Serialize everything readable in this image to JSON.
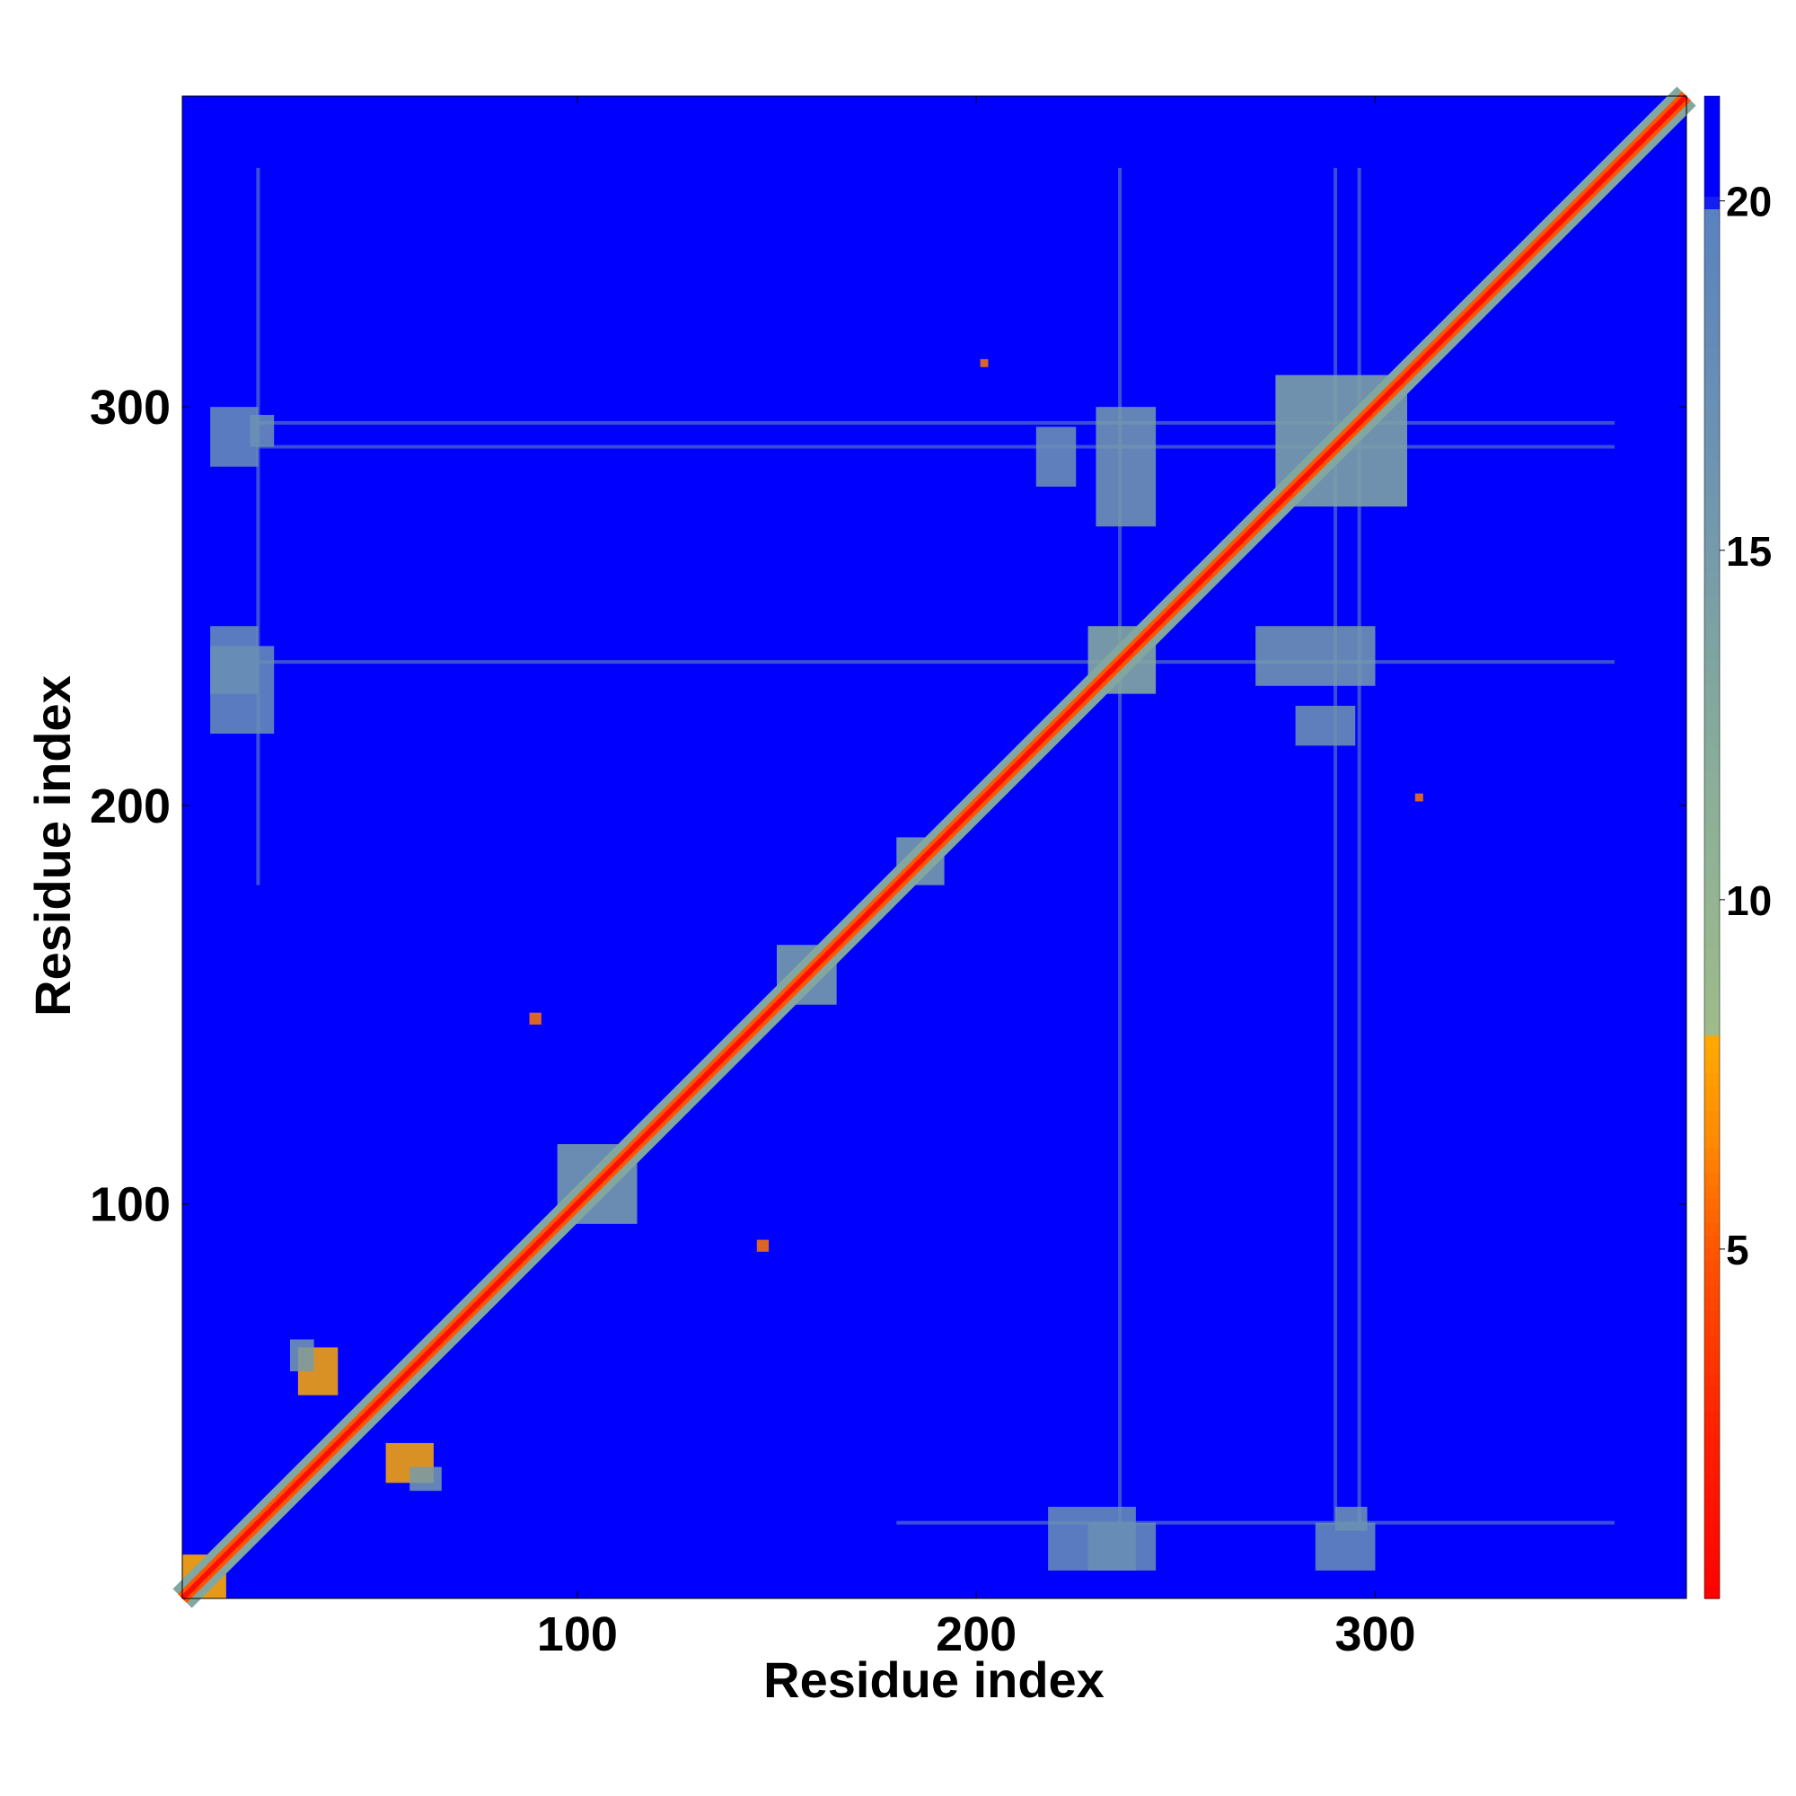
{
  "chart_data": {
    "type": "heatmap",
    "title": "",
    "xlabel": "Residue index",
    "ylabel": "Residue index",
    "xlim": [
      1,
      378
    ],
    "ylim": [
      1,
      378
    ],
    "x_ticks": [
      100,
      200,
      300
    ],
    "y_ticks": [
      100,
      200,
      300
    ],
    "colorbar": {
      "min": 0,
      "max": 21.5,
      "ticks": [
        5,
        10,
        15,
        20
      ],
      "stops": [
        {
          "value": 0,
          "color": "#ff0000"
        },
        {
          "value": 2.5,
          "color": "#ff2200"
        },
        {
          "value": 5,
          "color": "#ff5500"
        },
        {
          "value": 6.5,
          "color": "#ff8800"
        },
        {
          "value": 8,
          "color": "#ffaa00"
        },
        {
          "value": 8.1,
          "color": "#9fbb8a"
        },
        {
          "value": 12,
          "color": "#88ad9a"
        },
        {
          "value": 16,
          "color": "#6f95b0"
        },
        {
          "value": 19.9,
          "color": "#5a82c0"
        },
        {
          "value": 20,
          "color": "#0000ff"
        },
        {
          "value": 21.5,
          "color": "#0000ff"
        }
      ]
    },
    "background_value": 21.5,
    "diagonal": {
      "from": 1,
      "to": 378,
      "center_value": 1,
      "inner_value": 5,
      "halo_value": 13
    },
    "domain_blocks": [
      {
        "start": 1,
        "end": 12,
        "value": 8
      },
      {
        "start": 228,
        "end": 245,
        "value": 13
      },
      {
        "start": 275,
        "end": 308,
        "value": 14
      },
      {
        "start": 95,
        "end": 115,
        "value": 15
      },
      {
        "start": 150,
        "end": 165,
        "value": 15
      },
      {
        "start": 180,
        "end": 192,
        "value": 15
      }
    ],
    "contact_regions": [
      {
        "x": [
          30,
          40
        ],
        "y": [
          52,
          64
        ],
        "value": 8
      },
      {
        "x": [
          52,
          64
        ],
        "y": [
          30,
          40
        ],
        "value": 8
      },
      {
        "x": [
          28,
          34
        ],
        "y": [
          58,
          66
        ],
        "value": 15
      },
      {
        "x": [
          58,
          66
        ],
        "y": [
          28,
          34
        ],
        "value": 15
      },
      {
        "x": [
          230,
          245
        ],
        "y": [
          270,
          300
        ],
        "value": 15
      },
      {
        "x": [
          270,
          300
        ],
        "y": [
          230,
          245
        ],
        "value": 15
      },
      {
        "x": [
          215,
          225
        ],
        "y": [
          280,
          295
        ],
        "value": 16
      },
      {
        "x": [
          280,
          295
        ],
        "y": [
          215,
          225
        ],
        "value": 16
      },
      {
        "x": [
          18,
          24
        ],
        "y": [
          290,
          298
        ],
        "value": 16
      },
      {
        "x": [
          290,
          298
        ],
        "y": [
          18,
          24
        ],
        "value": 16
      },
      {
        "x": [
          8,
          24
        ],
        "y": [
          218,
          240
        ],
        "value": 17
      },
      {
        "x": [
          218,
          240
        ],
        "y": [
          8,
          24
        ],
        "value": 17
      },
      {
        "x": [
          228,
          245
        ],
        "y": [
          8,
          20
        ],
        "value": 17
      },
      {
        "x": [
          8,
          20
        ],
        "y": [
          228,
          245
        ],
        "value": 17
      },
      {
        "x": [
          285,
          300
        ],
        "y": [
          8,
          20
        ],
        "value": 17
      },
      {
        "x": [
          8,
          20
        ],
        "y": [
          285,
          300
        ],
        "value": 17
      },
      {
        "x": [
          88,
          91
        ],
        "y": [
          145,
          148
        ],
        "value": 6
      },
      {
        "x": [
          145,
          148
        ],
        "y": [
          88,
          91
        ],
        "value": 6
      },
      {
        "x": [
          201,
          203
        ],
        "y": [
          310,
          312
        ],
        "value": 6
      },
      {
        "x": [
          310,
          312
        ],
        "y": [
          201,
          203
        ],
        "value": 6
      }
    ],
    "stripes": [
      {
        "orient": "v",
        "pos": 20,
        "from": 180,
        "to": 360,
        "value": 17
      },
      {
        "orient": "h",
        "pos": 20,
        "from": 180,
        "to": 360,
        "value": 17
      },
      {
        "orient": "v",
        "pos": 236,
        "from": 20,
        "to": 360,
        "value": 17
      },
      {
        "orient": "h",
        "pos": 236,
        "from": 20,
        "to": 360,
        "value": 17
      },
      {
        "orient": "v",
        "pos": 296,
        "from": 20,
        "to": 360,
        "value": 17
      },
      {
        "orient": "h",
        "pos": 296,
        "from": 20,
        "to": 360,
        "value": 17
      },
      {
        "orient": "v",
        "pos": 290,
        "from": 20,
        "to": 360,
        "value": 18
      },
      {
        "orient": "h",
        "pos": 290,
        "from": 20,
        "to": 360,
        "value": 18
      }
    ]
  }
}
